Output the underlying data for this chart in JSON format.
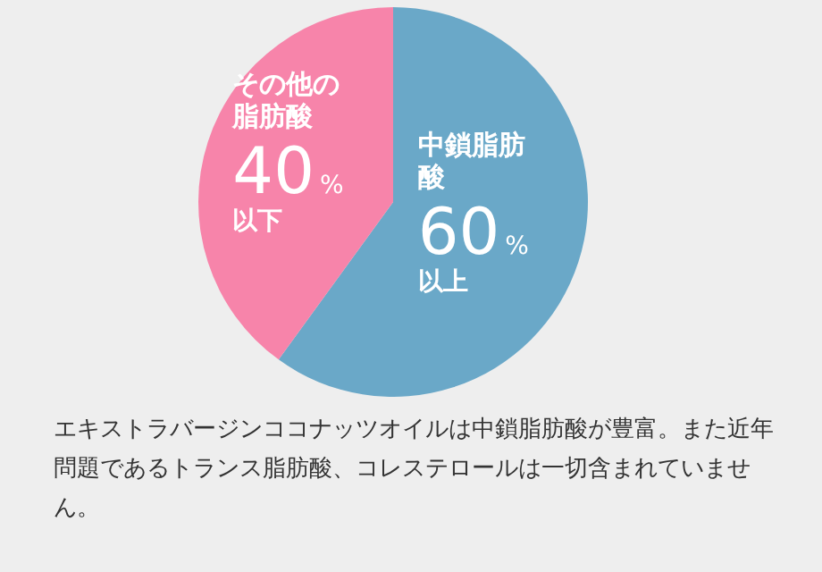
{
  "chart_data": {
    "type": "pie",
    "categories": [
      "中鎖脂肪酸",
      "その他の脂肪酸"
    ],
    "values": [
      60,
      40
    ],
    "colors": [
      "#6aa8c8",
      "#f784aa"
    ],
    "value_labels": [
      "60%以上",
      "40%以下"
    ],
    "legend": false,
    "annotations": [
      "エキストラバージンココナッツオイルは中鎖脂肪酸が豊富。また近年問題であるトランス脂肪酸、コレステロールは一切含まれていません。"
    ]
  }
}
